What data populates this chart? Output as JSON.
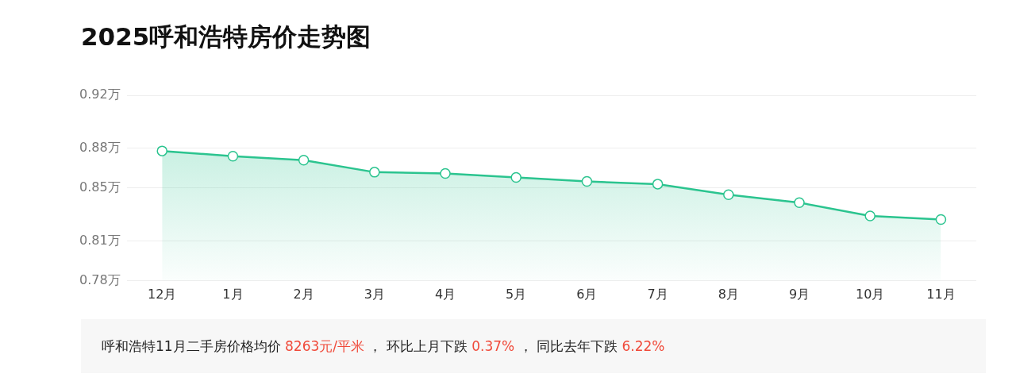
{
  "chart_data": {
    "type": "area",
    "title": "2025呼和浩特房价走势图",
    "categories": [
      "12月",
      "1月",
      "2月",
      "3月",
      "4月",
      "5月",
      "6月",
      "7月",
      "8月",
      "9月",
      "10月",
      "11月"
    ],
    "series": [
      {
        "color": "#2bc48f",
        "values": [
          0.878,
          0.874,
          0.871,
          0.862,
          0.861,
          0.858,
          0.855,
          0.853,
          0.845,
          0.839,
          0.829,
          0.8263
        ]
      }
    ],
    "ylim": [
      0.78,
      0.92
    ],
    "yticks": [
      {
        "value": 0.78,
        "label": "0.78万"
      },
      {
        "value": 0.81,
        "label": "0.81万"
      },
      {
        "value": 0.85,
        "label": "0.85万"
      },
      {
        "value": 0.88,
        "label": "0.88万"
      },
      {
        "value": 0.92,
        "label": "0.92万"
      }
    ],
    "grid": "y",
    "legend": false,
    "marker": "circle",
    "annotations": [
      "呼和浩特11月二手房价格均价 8263元/平米 ， 环比上月下跌 0.37% ， 同比去年下跌 6.22%"
    ]
  }
}
